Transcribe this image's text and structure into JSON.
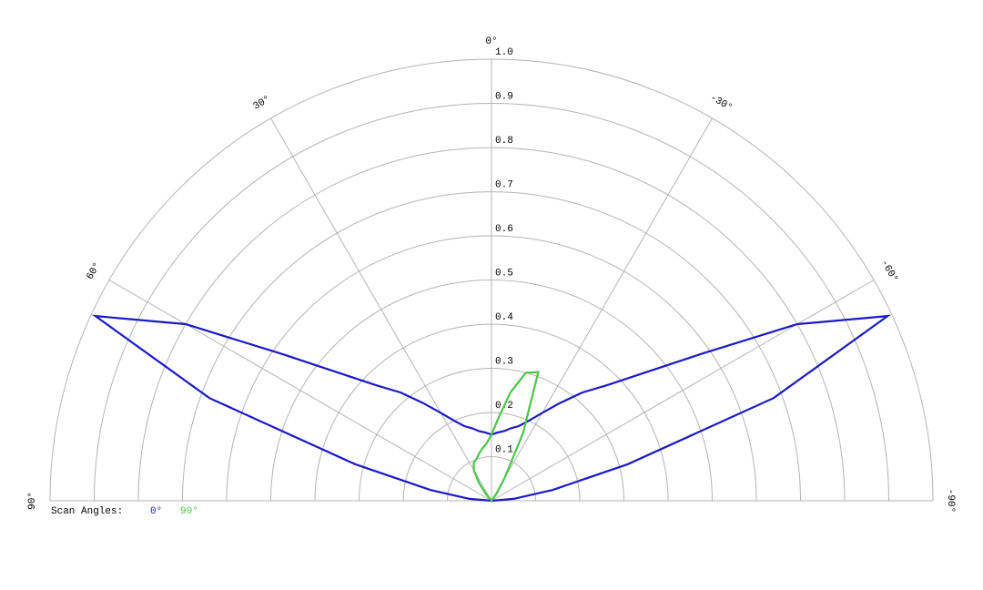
{
  "chart_data": {
    "type": "polar",
    "x": [
      -90,
      -85,
      -80,
      -75,
      -70,
      -65,
      -60,
      -55,
      -50,
      -45,
      -40,
      -35,
      -30,
      -25,
      -20,
      -15,
      -10,
      -5,
      0,
      5,
      10,
      15,
      20,
      25,
      30,
      35,
      40,
      45,
      50,
      55,
      60,
      65,
      70,
      75,
      80,
      85,
      90
    ],
    "series": [
      {
        "name": "0°",
        "color": "#1a1ac8",
        "values": [
          0,
          0.05,
          0.14,
          0.32,
          0.68,
          0.99,
          0.8,
          0.58,
          0.45,
          0.37,
          0.32,
          0.27,
          0.23,
          0.2,
          0.18,
          0.17,
          0.16,
          0.155,
          0.15,
          0.155,
          0.16,
          0.17,
          0.18,
          0.2,
          0.23,
          0.27,
          0.32,
          0.37,
          0.45,
          0.58,
          0.8,
          0.99,
          0.68,
          0.32,
          0.14,
          0.05,
          0
        ]
      },
      {
        "name": "90°",
        "color": "#4cc44c",
        "values": [
          0,
          0,
          0,
          0,
          0,
          0,
          0,
          0,
          0,
          0,
          0,
          0.02,
          0.06,
          0.17,
          0.31,
          0.3,
          0.25,
          0.19,
          0.15,
          0.13,
          0.12,
          0.11,
          0.1,
          0.095,
          0.08,
          0.05,
          0.02,
          0,
          0,
          0,
          0,
          0,
          0,
          0,
          0,
          0,
          0
        ]
      }
    ],
    "legend_title": "Scan Angles:",
    "xlim": [
      -90,
      90
    ],
    "xticks": [
      {
        "value": 90,
        "label": "90°"
      },
      {
        "value": 60,
        "label": "60°"
      },
      {
        "value": 30,
        "label": "30°"
      },
      {
        "value": 0,
        "label": "0°"
      },
      {
        "value": -30,
        "label": "-30°"
      },
      {
        "value": -60,
        "label": "-60°"
      },
      {
        "value": -90,
        "label": "-90°"
      }
    ],
    "ylim": [
      0,
      1
    ],
    "yticks": [
      0.1,
      0.2,
      0.3,
      0.4,
      0.5,
      0.6,
      0.7,
      0.8,
      0.9,
      {
        "value": 1,
        "label": "1.0"
      }
    ],
    "grid": true
  }
}
